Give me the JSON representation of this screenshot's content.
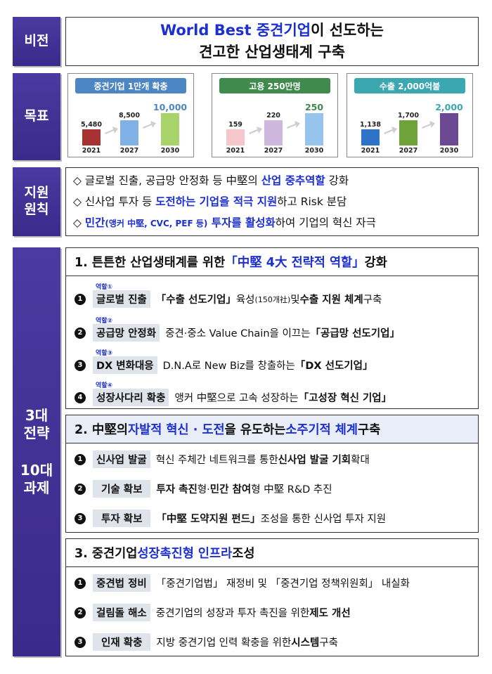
{
  "labels": {
    "vision": "비전",
    "goals": "목표",
    "principles_1": "지원",
    "principles_2": "원칙",
    "strategies_1": "3대",
    "strategies_2": "전략",
    "strategies_3": "10대",
    "strategies_4": "과제"
  },
  "vision": {
    "line1_a": "World Best 중견기업",
    "line1_b": "이 선도하는",
    "line2": "견고한 산업생태계 구축"
  },
  "goals": [
    {
      "title": "중견기업 1만개 확충",
      "years": [
        "2021",
        "2027",
        "2030"
      ],
      "values": [
        5480,
        8500,
        10000
      ],
      "value_labels": [
        "5,480",
        "8,500",
        "10,000"
      ],
      "colors": [
        "#a83232",
        "#7fb1e6",
        "#a8d26a"
      ],
      "head_color": "#4d86c4"
    },
    {
      "title": "고용 250만명",
      "years": [
        "2021",
        "2027",
        "2030"
      ],
      "values": [
        159,
        220,
        250
      ],
      "value_labels": [
        "159",
        "220",
        "250"
      ],
      "colors": [
        "#f5c7cb",
        "#cdb7dd",
        "#97c4ec"
      ],
      "head_color": "#3f8a4c"
    },
    {
      "title": "수출 2,000억불",
      "years": [
        "2021",
        "2027",
        "2030"
      ],
      "values": [
        1138,
        1700,
        2000
      ],
      "value_labels": [
        "1,138",
        "1,700",
        "2,000"
      ],
      "colors": [
        "#2f73c8",
        "#6ea33a",
        "#6b4a93"
      ],
      "head_color": "#3ba7b0"
    }
  ],
  "principles": [
    {
      "bullet": "◇",
      "parts": [
        "글로벌 진출, 공급망 안정화 등 中堅의 ",
        "산업 중추역할",
        " 강화"
      ]
    },
    {
      "bullet": "◇",
      "parts": [
        "신사업 투자 등 ",
        "도전하는 기업을 적극 지원",
        "하고 Risk 분담"
      ]
    },
    {
      "bullet": "◇",
      "parts": [
        "민간",
        "(앵커 中堅, CVC, PEF 등)",
        " 투자를 활성화",
        "하여 기업의 혁신 자극"
      ]
    }
  ],
  "strategy1": {
    "title_a": "1. 튼튼한 산업생태계를 위한 ",
    "title_b": "「中堅 4大 전략적 역할」",
    "title_c": " 강화",
    "tasks": [
      {
        "num": "1",
        "role": "역할①",
        "tag": "글로벌 진출",
        "parts": [
          "「수출 선도기업」",
          " 육성",
          "(150개社)",
          " 및 ",
          "수출 지원 체계",
          " 구축"
        ]
      },
      {
        "num": "2",
        "role": "역할②",
        "tag": "공급망 안정화",
        "parts": [
          "중견·중소 Value Chain을 이끄는 ",
          "「공급망 선도기업」"
        ]
      },
      {
        "num": "3",
        "role": "역할③",
        "tag": "DX 변화대응",
        "parts": [
          "D.N.A로 New Biz를 창출하는 ",
          "「DX 선도기업」"
        ]
      },
      {
        "num": "4",
        "role": "역할④",
        "tag": "성장사다리 확충",
        "parts": [
          "앵커 中堅으로 고속 성장하는 ",
          "「고성장 혁신 기업」"
        ]
      }
    ]
  },
  "strategy2": {
    "title_a": "2. 中堅의 ",
    "title_b": "자발적 혁신 · 도전",
    "title_c": "을 유도하는 ",
    "title_d": "소주기적 체계",
    "title_e": " 구축",
    "tasks": [
      {
        "num": "1",
        "tag": "신사업 발굴",
        "parts": [
          "혁신 주체간 네트워크를 통한 ",
          "신사업 발굴 기회",
          " 확대"
        ]
      },
      {
        "num": "2",
        "tag": "기술 확보",
        "parts": [
          "투자 촉진",
          "형·",
          "민간 참여",
          "형 中堅 R&D 추진"
        ]
      },
      {
        "num": "3",
        "tag": "투자 확보",
        "parts": [
          "「中堅 도약지원 펀드」",
          " 조성을 통한 신사업 투자 지원"
        ]
      }
    ]
  },
  "strategy3": {
    "title_a": "3. 중견기업 ",
    "title_b": "성장촉진형 인프라",
    "title_c": " 조성",
    "tasks": [
      {
        "num": "1",
        "tag": "중견법 정비",
        "parts": [
          "「중견기업법」 재정비 및 「중견기업 정책위원회」 내실화"
        ]
      },
      {
        "num": "2",
        "tag": "걸림돌 해소",
        "parts": [
          "중견기업의 성장과 투자 촉진을 위한 ",
          "제도 개선"
        ]
      },
      {
        "num": "3",
        "tag": "인재 확충",
        "parts": [
          "지방 중견기업 인력 확충을 위한 ",
          "시스템",
          " 구축"
        ]
      }
    ]
  }
}
